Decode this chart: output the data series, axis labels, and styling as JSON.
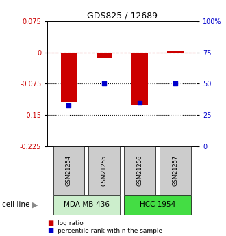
{
  "title": "GDS825 / 12689",
  "samples": [
    "GSM21254",
    "GSM21255",
    "GSM21256",
    "GSM21257"
  ],
  "log_ratios": [
    -0.118,
    -0.013,
    -0.125,
    0.003
  ],
  "percentile_ranks": [
    33,
    50,
    35,
    50
  ],
  "ylim_left": [
    -0.225,
    0.075
  ],
  "ylim_right": [
    0,
    100
  ],
  "yticks_left": [
    0.075,
    0,
    -0.075,
    -0.15,
    -0.225
  ],
  "yticks_right": [
    100,
    75,
    50,
    25,
    0
  ],
  "hlines": [
    0,
    -0.075,
    -0.15
  ],
  "hline_styles": [
    "dashed",
    "dotted",
    "dotted"
  ],
  "hline_colors": [
    "#cc0000",
    "#000000",
    "#000000"
  ],
  "cell_lines": [
    {
      "label": "MDA-MB-436",
      "samples": [
        0,
        1
      ],
      "color": "#cceecc"
    },
    {
      "label": "HCC 1954",
      "samples": [
        2,
        3
      ],
      "color": "#44dd44"
    }
  ],
  "bar_color": "#cc0000",
  "dot_color": "#0000cc",
  "sample_box_color": "#cccccc",
  "background_color": "#ffffff",
  "bar_width": 0.45,
  "dot_size": 18,
  "title_fontsize": 9
}
